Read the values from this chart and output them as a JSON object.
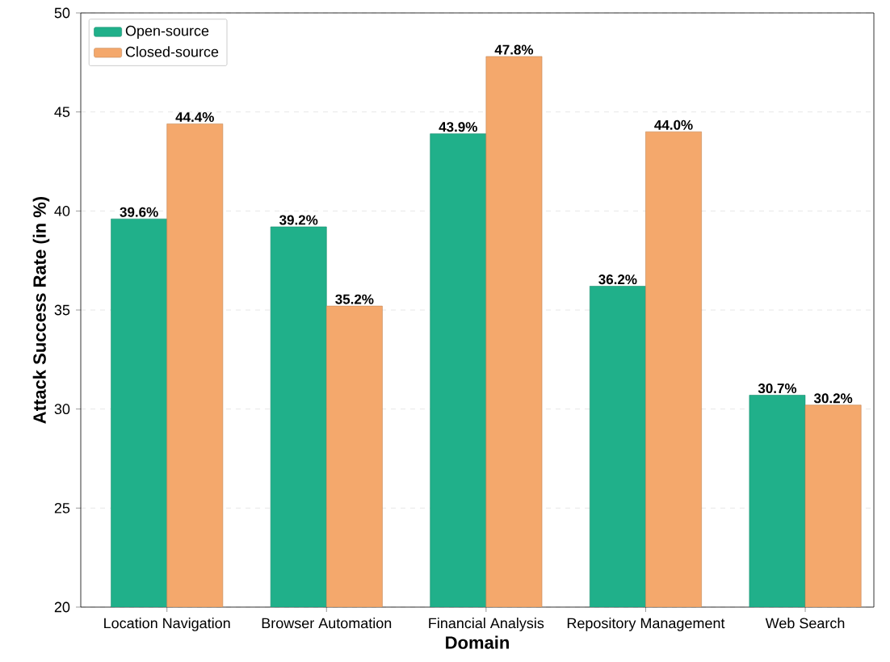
{
  "chart_data": {
    "type": "bar",
    "xlabel": "Domain",
    "ylabel": "Attack Success Rate (in %)",
    "categories": [
      "Location Navigation",
      "Browser Automation",
      "Financial Analysis",
      "Repository Management",
      "Web Search"
    ],
    "series": [
      {
        "name": "Open-source",
        "color": "#20b08a",
        "values": [
          39.6,
          39.2,
          43.9,
          36.2,
          30.7
        ],
        "value_labels": [
          "39.6%",
          "39.2%",
          "43.9%",
          "36.2%",
          "30.7%"
        ]
      },
      {
        "name": "Closed-source",
        "color": "#f4a86c",
        "values": [
          44.4,
          35.2,
          47.8,
          44.0,
          30.2
        ],
        "value_labels": [
          "44.4%",
          "35.2%",
          "47.8%",
          "44.0%",
          "30.2%"
        ]
      }
    ],
    "ylim": [
      20,
      50
    ],
    "yticks": [
      20,
      25,
      30,
      35,
      40,
      45,
      50
    ],
    "grid": "y",
    "legend": "top left"
  }
}
